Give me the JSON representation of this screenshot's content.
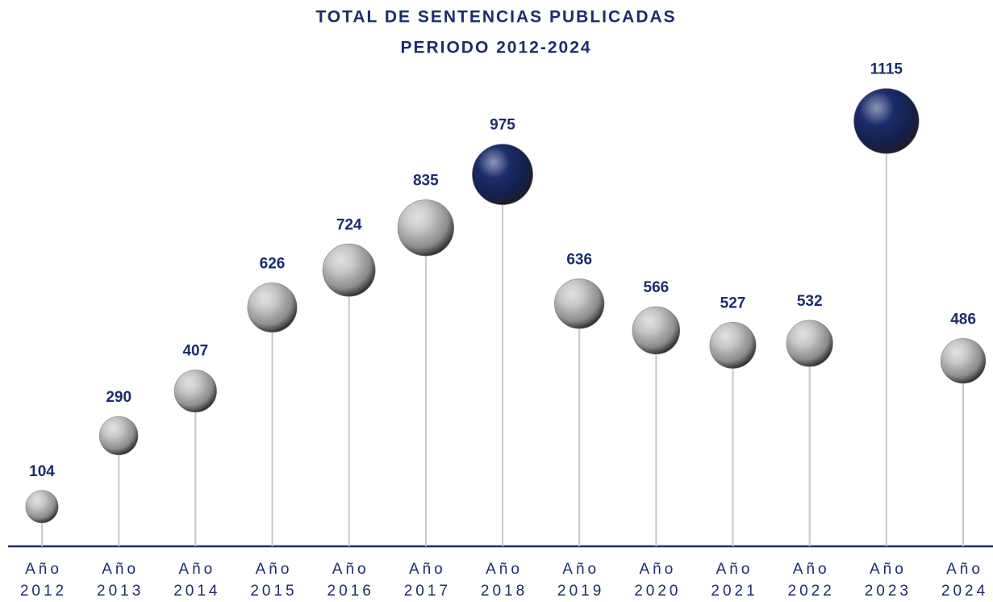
{
  "chart_data": {
    "type": "lollipop",
    "title": "TOTAL DE SENTENCIAS PUBLICADAS",
    "subtitle": "PERIODO 2012-2024",
    "categories": [
      "Año 2012",
      "Año 2013",
      "Año 2014",
      "Año 2015",
      "Año 2016",
      "Año 2017",
      "Año 2018",
      "Año 2019",
      "Año 2020",
      "Año 2021",
      "Año 2022",
      "Año 2023",
      "Año 2024"
    ],
    "values": [
      104,
      290,
      407,
      626,
      724,
      835,
      975,
      636,
      566,
      527,
      532,
      1115,
      486
    ],
    "colors": [
      "#c4c4c4",
      "#c4c4c4",
      "#c4c4c4",
      "#c4c4c4",
      "#c4c4c4",
      "#c4c4c4",
      "#1b2d6b",
      "#c4c4c4",
      "#c4c4c4",
      "#c4c4c4",
      "#c4c4c4",
      "#1b2d6b",
      "#c4c4c4"
    ],
    "label_color": "#1b2d6b"
  }
}
